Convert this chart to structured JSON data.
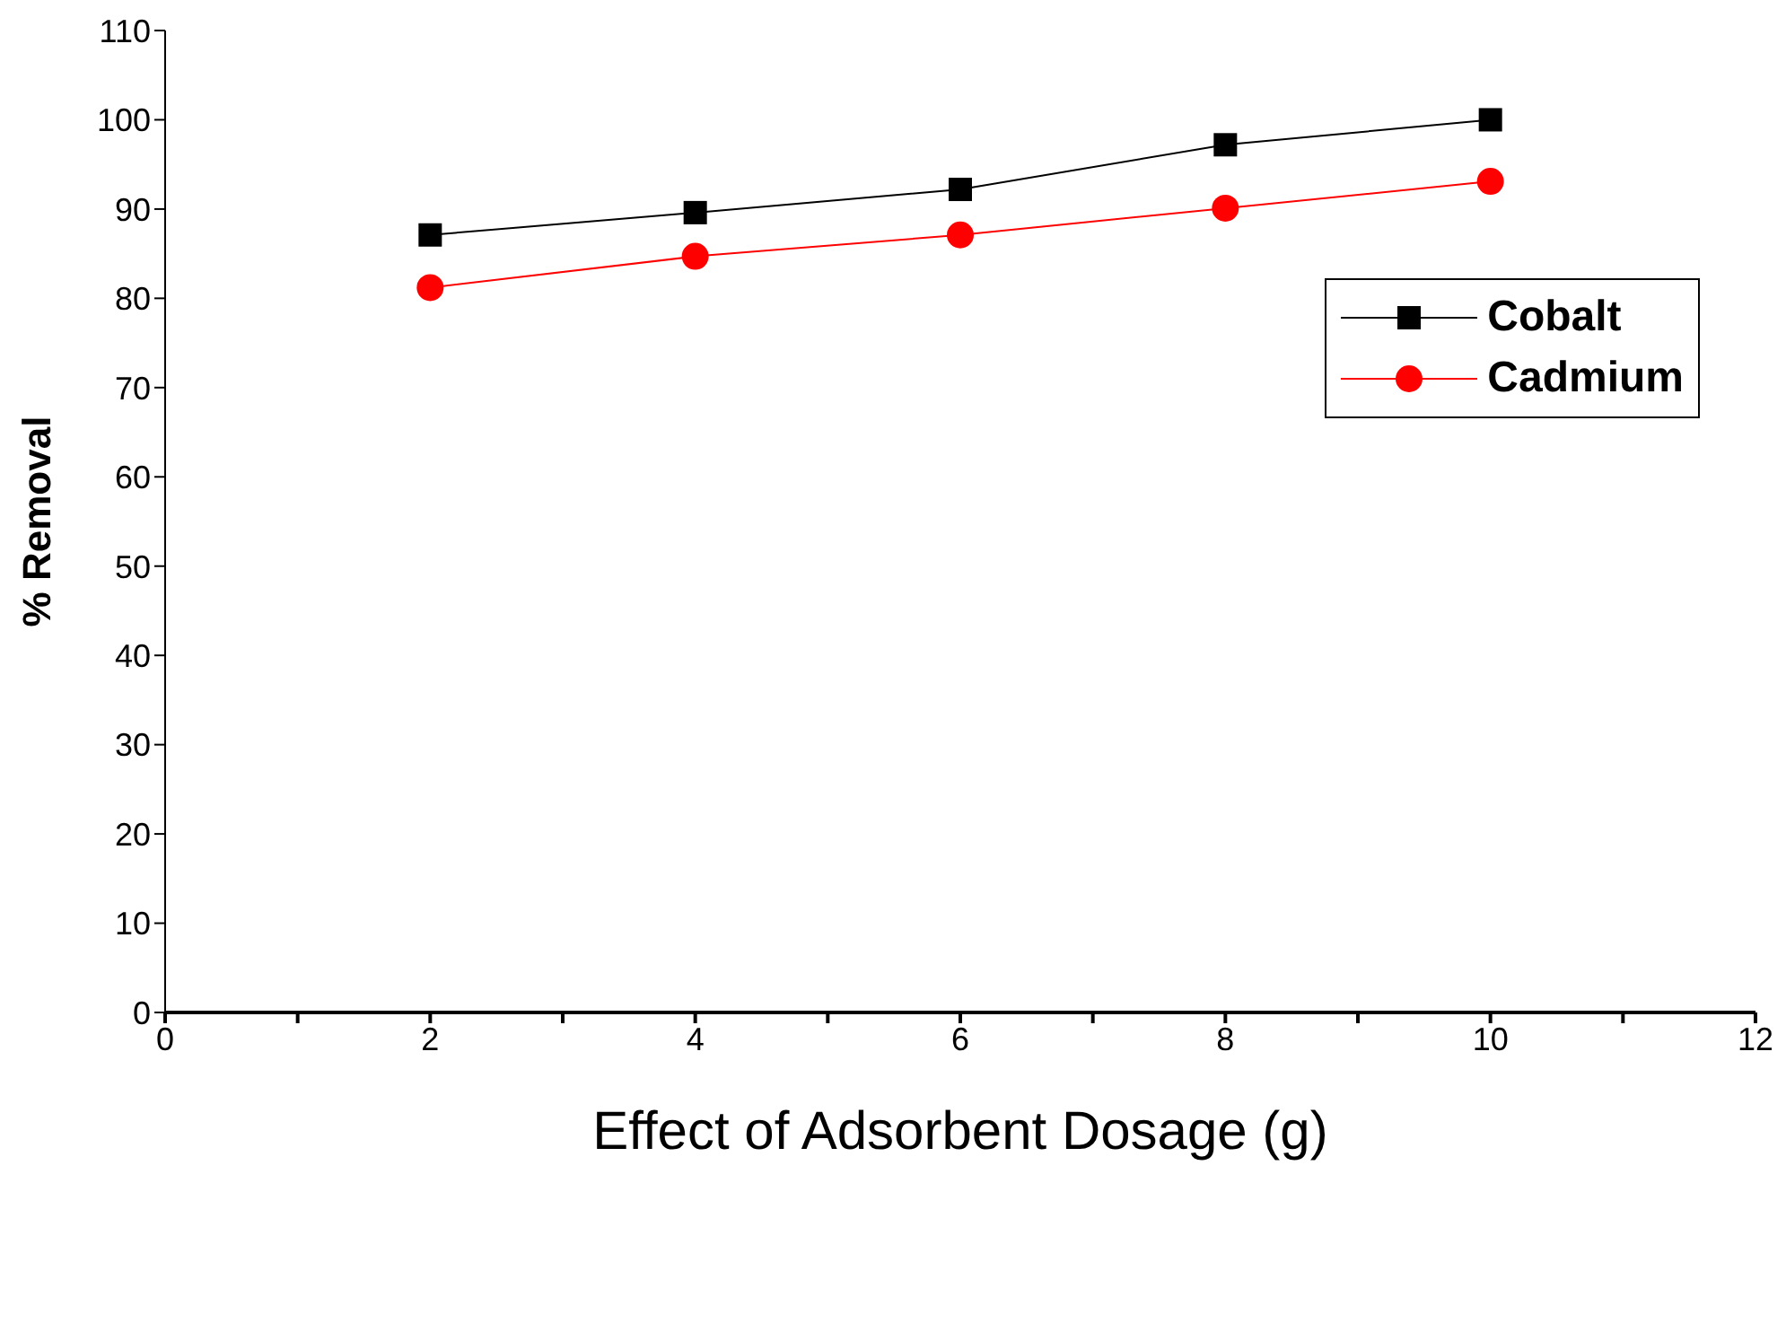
{
  "chart_data": {
    "type": "line",
    "xlabel": "Effect of Adsorbent Dosage (g)",
    "ylabel": "% Removal",
    "x": [
      2,
      4,
      6,
      8,
      10
    ],
    "series": [
      {
        "name": "Cobalt",
        "color": "#000000",
        "marker": "square",
        "values": [
          87.1,
          89.6,
          92.2,
          97.2,
          100
        ]
      },
      {
        "name": "Cadmium",
        "color": "#ff0000",
        "marker": "circle",
        "values": [
          81.2,
          84.7,
          87.1,
          90.1,
          93.1
        ]
      }
    ],
    "xlim": [
      0,
      12
    ],
    "xticks": [
      0,
      {
        "value": 1,
        "label": null
      },
      2,
      {
        "value": 3,
        "label": null
      },
      4,
      {
        "value": 5,
        "label": null
      },
      6,
      {
        "value": 7,
        "label": null
      },
      8,
      {
        "value": 9,
        "label": null
      },
      10,
      {
        "value": 11,
        "label": null
      },
      12
    ],
    "ylim": [
      0,
      110
    ],
    "yticks": [
      0,
      10,
      20,
      30,
      40,
      50,
      60,
      70,
      80,
      90,
      100,
      110
    ],
    "grid": false,
    "legend": "top right",
    "line_style": "solid"
  }
}
